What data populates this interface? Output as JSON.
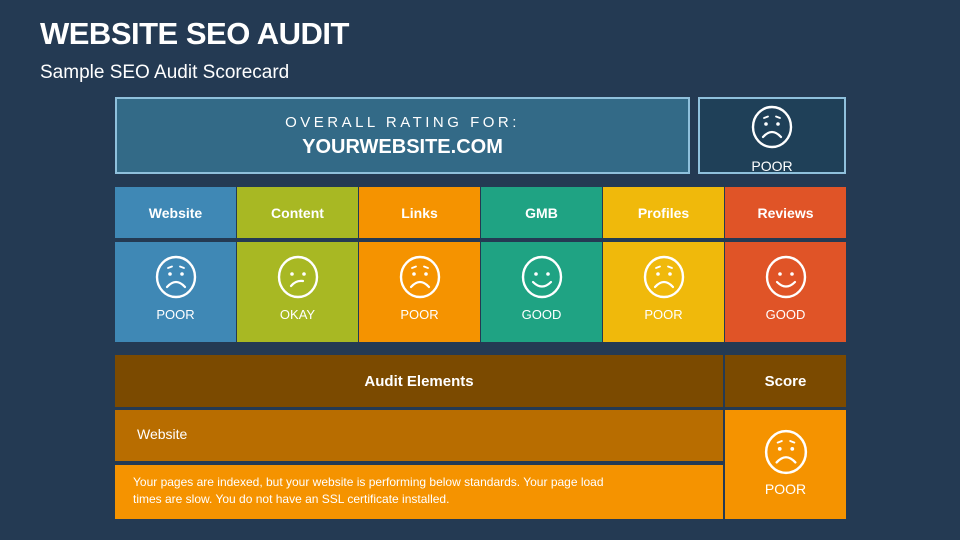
{
  "header": {
    "title": "WEBSITE SEO AUDIT",
    "subtitle": "Sample SEO Audit Scorecard"
  },
  "overall": {
    "label": "OVERALL RATING FOR:",
    "site": "YOURWEBSITE.COM",
    "rating": "POOR",
    "face": "sad"
  },
  "categories": [
    {
      "name": "Website",
      "rating": "POOR",
      "face": "sad",
      "color": "#3f88b5"
    },
    {
      "name": "Content",
      "rating": "OKAY",
      "face": "okay",
      "color": "#a8b823"
    },
    {
      "name": "Links",
      "rating": "POOR",
      "face": "sad",
      "color": "#f59300"
    },
    {
      "name": "GMB",
      "rating": "GOOD",
      "face": "happy",
      "color": "#1fa383"
    },
    {
      "name": "Profiles",
      "rating": "POOR",
      "face": "sad",
      "color": "#f0b90b"
    },
    {
      "name": "Reviews",
      "rating": "GOOD",
      "face": "happy",
      "color": "#e05427"
    }
  ],
  "audit": {
    "col_elements": "Audit Elements",
    "col_score": "Score",
    "row": {
      "name": "Website",
      "description": "Your pages are indexed, but your website is performing below standards. Your page load times are slow. You do not have an SSL certificate installed.",
      "rating": "POOR",
      "face": "sad"
    }
  }
}
